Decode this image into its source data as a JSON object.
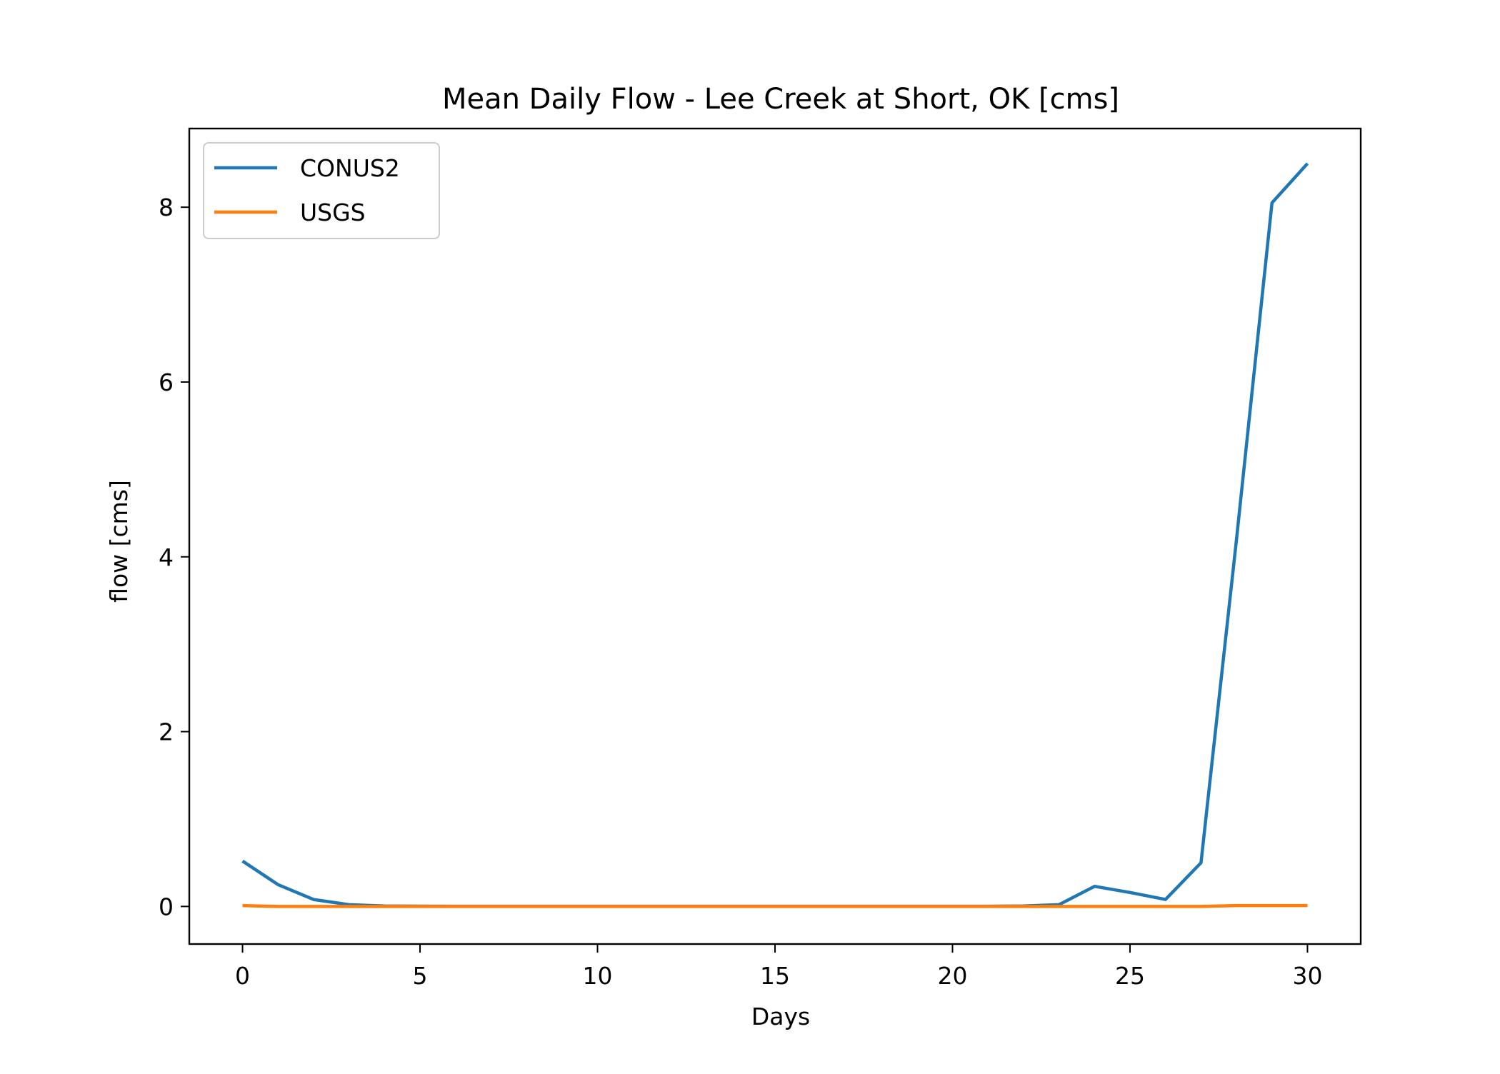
{
  "chart_data": {
    "type": "line",
    "title": "Mean Daily Flow - Lee Creek at Short, OK [cms]",
    "xlabel": "Days",
    "ylabel": "flow [cms]",
    "xlim": [
      -1.5,
      31.5
    ],
    "ylim": [
      -0.43,
      8.9
    ],
    "xticks": [
      0,
      5,
      10,
      15,
      20,
      25,
      30
    ],
    "yticks": [
      0,
      2,
      4,
      6,
      8
    ],
    "grid": false,
    "legend_position": "upper-left",
    "x": [
      0,
      1,
      2,
      3,
      4,
      5,
      6,
      7,
      8,
      9,
      10,
      11,
      12,
      13,
      14,
      15,
      16,
      17,
      18,
      19,
      20,
      21,
      22,
      23,
      24,
      25,
      26,
      27,
      28,
      29,
      30
    ],
    "series": [
      {
        "name": "CONUS2",
        "color": "#1f77b4",
        "values": [
          0.52,
          0.25,
          0.08,
          0.02,
          0.005,
          0.003,
          0.002,
          0.002,
          0.002,
          0.002,
          0.002,
          0.002,
          0.002,
          0.002,
          0.002,
          0.002,
          0.002,
          0.002,
          0.002,
          0.002,
          0.002,
          0.002,
          0.005,
          0.02,
          0.23,
          0.16,
          0.08,
          0.5,
          4.2,
          8.05,
          8.5
        ]
      },
      {
        "name": "USGS",
        "color": "#ff7f0e",
        "values": [
          0.01,
          0.0,
          0.0,
          0.0,
          0.0,
          0.0,
          0.0,
          0.0,
          0.0,
          0.0,
          0.0,
          0.0,
          0.0,
          0.0,
          0.0,
          0.0,
          0.0,
          0.0,
          0.0,
          0.0,
          0.0,
          0.0,
          0.0,
          0.0,
          0.0,
          0.0,
          0.0,
          0.0,
          0.01,
          0.01,
          0.01
        ]
      }
    ]
  }
}
